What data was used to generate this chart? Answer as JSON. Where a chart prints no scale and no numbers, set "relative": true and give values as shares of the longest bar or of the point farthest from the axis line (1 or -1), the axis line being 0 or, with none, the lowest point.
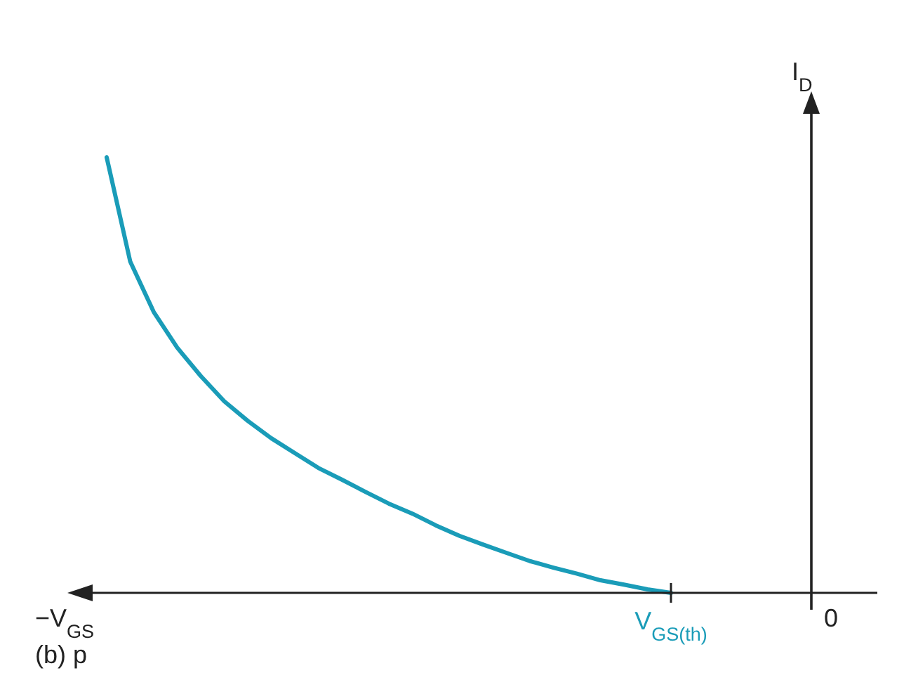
{
  "chart_data": {
    "type": "line",
    "relative": true,
    "xlabel": "−V$_{GS}$",
    "ylabel": "I$_{D}$",
    "annotations": [
      "V$_{GS(th)}$",
      "0",
      "(b) p"
    ],
    "categories": [
      null,
      null,
      null,
      null,
      null,
      null,
      null,
      null,
      null,
      null,
      null,
      null,
      null,
      null,
      null,
      null,
      null,
      null,
      null,
      null,
      null,
      null,
      null,
      null,
      null
    ],
    "series": [
      {
        "color": "#1a9cb8",
        "values": [
          1.0,
          0.761,
          0.645,
          0.563,
          0.498,
          0.44,
          0.395,
          0.355,
          0.321,
          0.287,
          0.26,
          0.232,
          0.205,
          0.182,
          0.155,
          0.131,
          0.111,
          0.092,
          0.073,
          0.058,
          0.044,
          0.029,
          0.019,
          0.008,
          0
        ]
      }
    ]
  }
}
